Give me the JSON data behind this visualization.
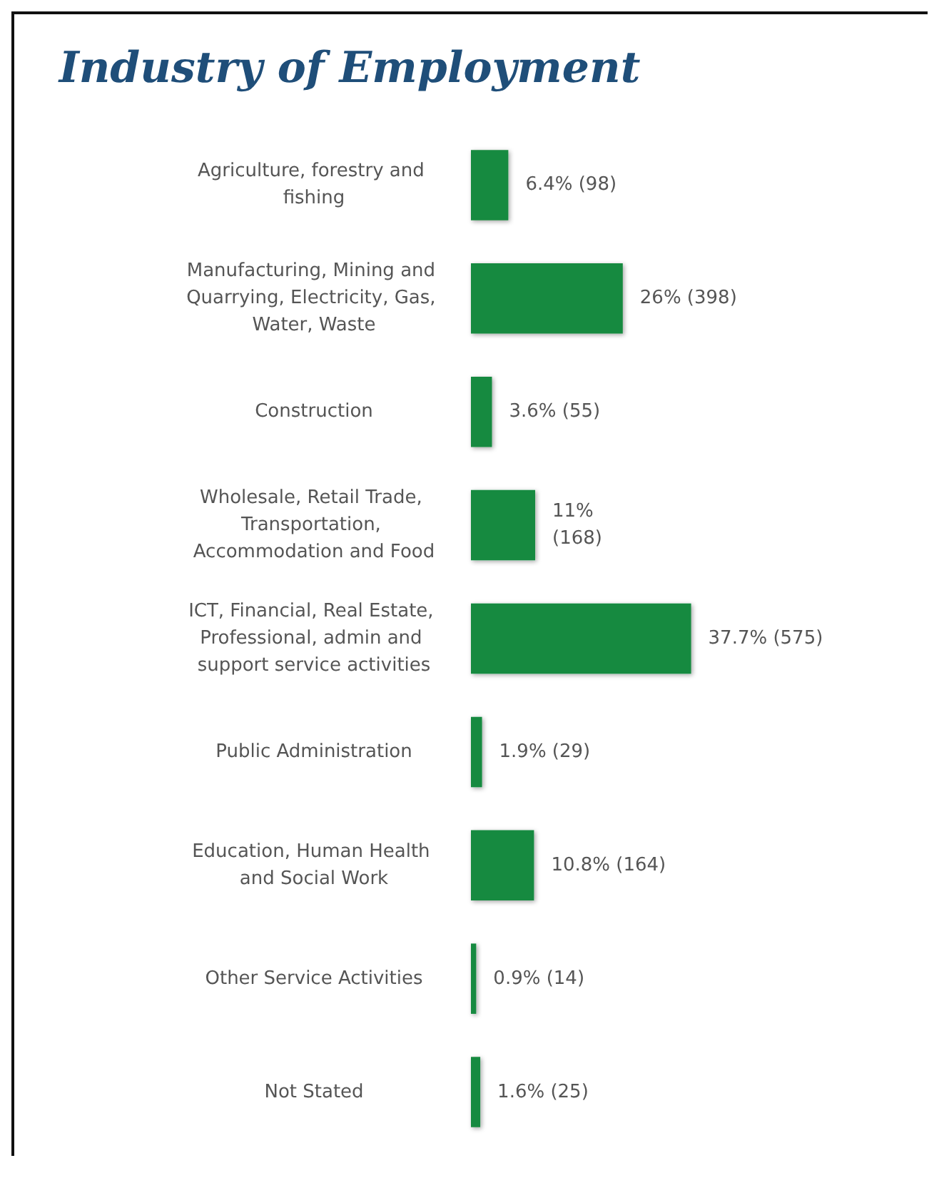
{
  "chart_data": {
    "type": "bar",
    "orientation": "horizontal",
    "title": "Industry of Employment",
    "categories": [
      "Agriculture, forestry and fishing",
      "Manufacturing, Mining and Quarrying, Electricity, Gas, Water, Waste",
      "Construction",
      "Wholesale, Retail Trade, Transportation, Accommodation and Food",
      "ICT, Financial, Real Estate, Professional, admin and support service activities",
      "Public Administration",
      "Education, Human Health and Social Work",
      "Other Service Activities",
      "Not Stated"
    ],
    "values": [
      6.4,
      26,
      3.6,
      11,
      37.7,
      1.9,
      10.8,
      0.9,
      1.6
    ],
    "value_labels": [
      "6.4% (98)",
      "26% (398)",
      "3.6% (55)",
      "11%\n(168)",
      "37.7% (575)",
      "1.9% (29)",
      "10.8% (164)",
      "0.9% (14)",
      "1.6% (25)"
    ],
    "color": "#178a3f"
  }
}
